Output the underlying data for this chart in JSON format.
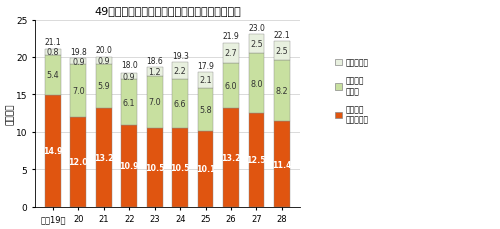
{
  "title": "49歳以下の新規就農者数の推移（就農形態別）",
  "ylabel": "（千人）",
  "categories": [
    "平成19年",
    "20",
    "21",
    "22",
    "23",
    "24",
    "25",
    "26",
    "27",
    "28"
  ],
  "jiei": [
    14.9,
    12.0,
    13.2,
    10.9,
    10.5,
    10.5,
    10.1,
    13.2,
    12.5,
    11.4
  ],
  "koyo": [
    5.4,
    7.0,
    5.9,
    6.1,
    7.0,
    6.6,
    5.8,
    6.0,
    8.0,
    8.2
  ],
  "sanyu": [
    0.8,
    0.9,
    0.9,
    0.9,
    1.2,
    2.2,
    2.1,
    2.7,
    2.5,
    2.5
  ],
  "totals": [
    21.1,
    19.8,
    20.0,
    18.0,
    18.6,
    19.3,
    17.9,
    21.9,
    23.0,
    22.1
  ],
  "color_jiei": "#E05510",
  "color_koyo": "#C8E0A0",
  "color_sanyu": "#E8F0DF",
  "color_jiei_label_bg": "#FFFFFF",
  "legend_jiei": "新規自営\n農業就農者",
  "legend_koyo": "新規雇用\n就農者",
  "legend_sanyu": "新規参入者",
  "ylim": [
    0,
    25
  ],
  "yticks": [
    0,
    5,
    10,
    15,
    20,
    25
  ],
  "bg_color": "#FFFFFF"
}
